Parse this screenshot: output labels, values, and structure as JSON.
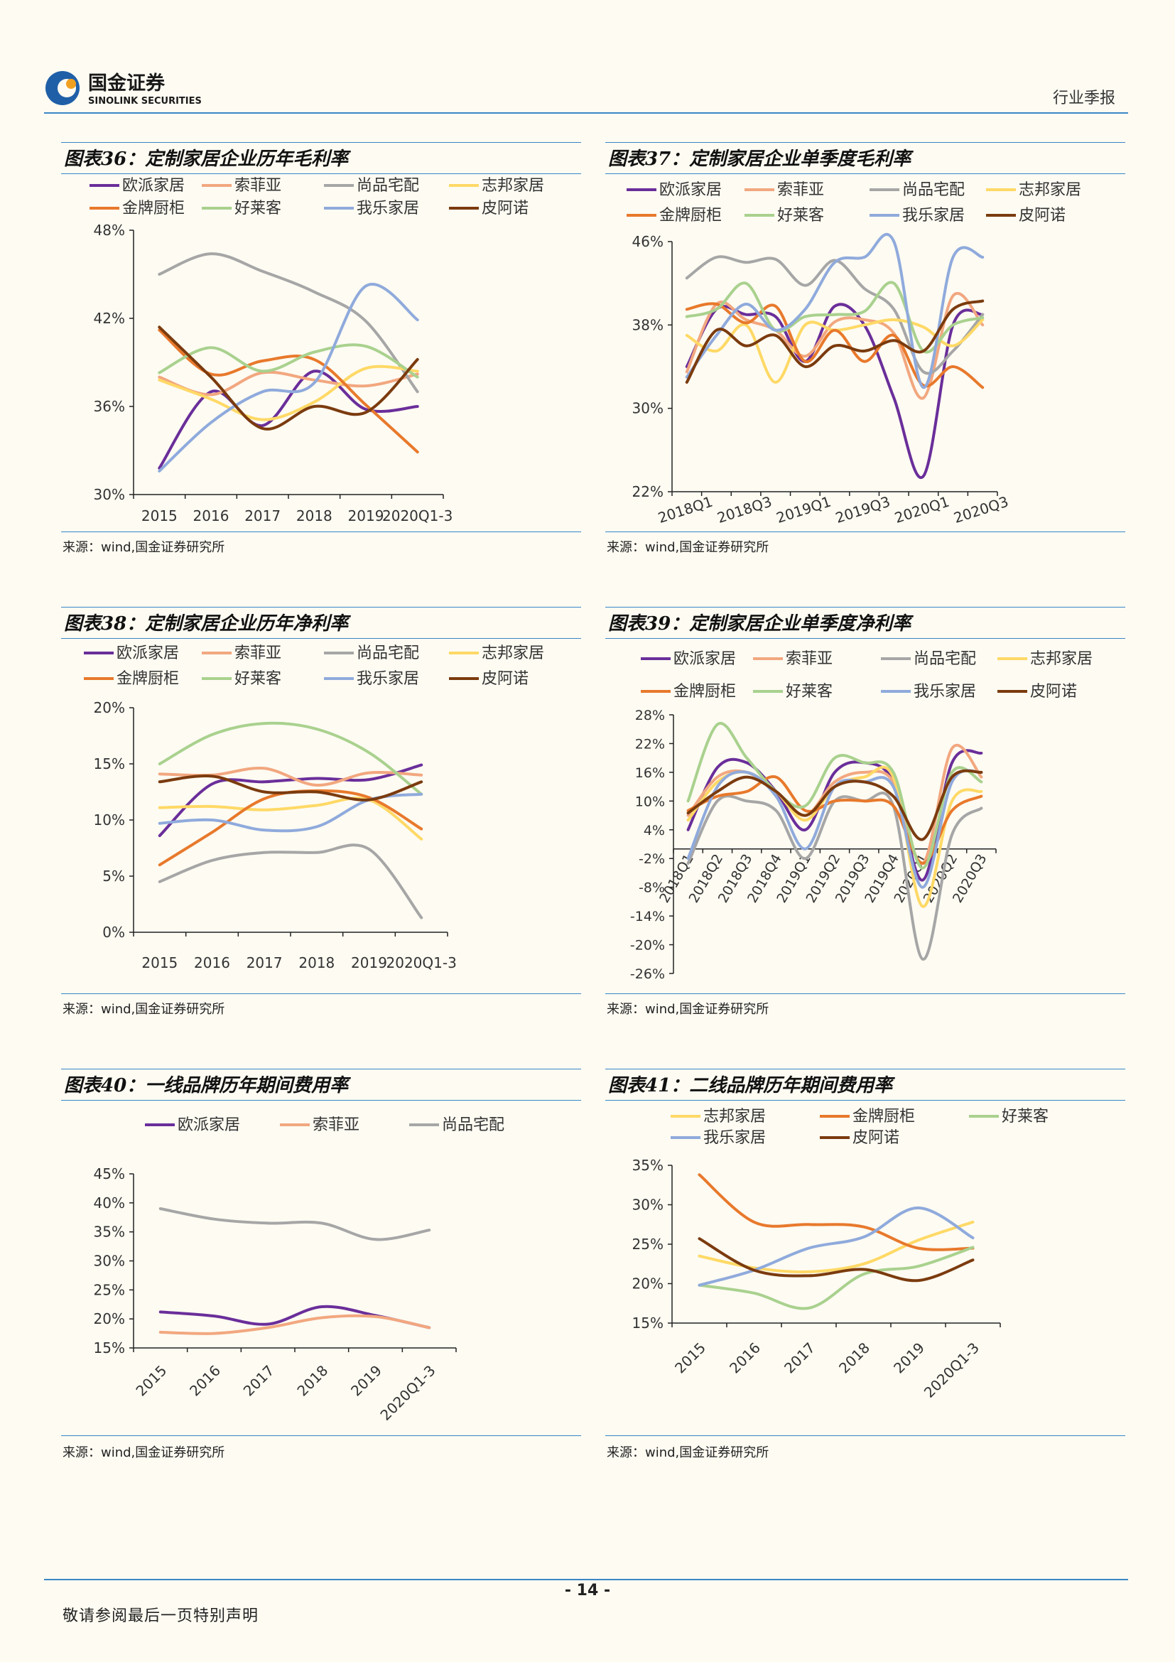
{
  "header": {
    "company_cn": "国金证券",
    "company_en": "SINOLINK SECURITIES",
    "report_type": "行业季报"
  },
  "footer": {
    "page_number": "- 14 -",
    "disclaimer": "敬请参阅最后一页特别声明"
  },
  "colors": {
    "欧派家居": "#6a2e9a",
    "索菲亚": "#f2a77f",
    "尚品宅配": "#a6a6a6",
    "志邦家居": "#ffd966",
    "金牌厨柜": "#e8792c",
    "好莱客": "#a9d18e",
    "我乐家居": "#8faadc",
    "皮阿诺": "#7b3b0e",
    "rule": "#3a86c8"
  },
  "chart_data": [
    {
      "id": "fig36",
      "title": "图表36：定制家居企业历年毛利率",
      "source": "来源：wind,国金证券研究所",
      "type": "line",
      "categories": [
        "2015",
        "2016",
        "2017",
        "2018",
        "2019",
        "2020Q1-3"
      ],
      "y_ticks": [
        "30%",
        "36%",
        "42%",
        "48%"
      ],
      "ylim": [
        30,
        48
      ],
      "legend": [
        "欧派家居",
        "索菲亚",
        "尚品宅配",
        "志邦家居",
        "金牌厨柜",
        "好莱客",
        "我乐家居",
        "皮阿诺"
      ],
      "series": [
        {
          "name": "欧派家居",
          "values": [
            31.8,
            37.0,
            34.7,
            38.4,
            35.8,
            36.0
          ]
        },
        {
          "name": "索菲亚",
          "values": [
            38.0,
            36.8,
            38.3,
            37.8,
            37.4,
            38.2
          ]
        },
        {
          "name": "尚品宅配",
          "values": [
            45.0,
            46.4,
            45.2,
            43.8,
            41.8,
            37.0
          ]
        },
        {
          "name": "志邦家居",
          "values": [
            37.8,
            36.5,
            35.1,
            36.3,
            38.6,
            38.4
          ]
        },
        {
          "name": "金牌厨柜",
          "values": [
            41.2,
            38.2,
            39.1,
            39.2,
            36.1,
            32.9
          ]
        },
        {
          "name": "好莱客",
          "values": [
            38.3,
            40.0,
            38.4,
            39.7,
            40.1,
            38.0
          ]
        },
        {
          "name": "我乐家居",
          "values": [
            31.6,
            34.9,
            37.0,
            37.6,
            44.2,
            41.9
          ]
        },
        {
          "name": "皮阿诺",
          "values": [
            41.4,
            38.0,
            34.5,
            36.0,
            35.6,
            39.2
          ]
        }
      ]
    },
    {
      "id": "fig37",
      "title": "图表37：定制家居企业单季度毛利率",
      "source": "来源：wind,国金证券研究所",
      "type": "line",
      "categories": [
        "2018Q1",
        "2018Q2",
        "2018Q3",
        "2018Q4",
        "2019Q1",
        "2019Q2",
        "2019Q3",
        "2019Q4",
        "2020Q1",
        "2020Q2",
        "2020Q3"
      ],
      "tick_labels": [
        "2018Q1",
        "2018Q3",
        "2019Q1",
        "2019Q3",
        "2020Q1",
        "2020Q3"
      ],
      "y_ticks": [
        "22%",
        "30%",
        "38%",
        "46%"
      ],
      "ylim": [
        22,
        46
      ],
      "legend": [
        "欧派家居",
        "索菲亚",
        "尚品宅配",
        "志邦家居",
        "金牌厨柜",
        "好莱客",
        "我乐家居",
        "皮阿诺"
      ],
      "series": [
        {
          "name": "欧派家居",
          "values": [
            34.0,
            39.5,
            39.0,
            38.8,
            34.5,
            39.8,
            38.0,
            31.0,
            23.5,
            38.0,
            39.0
          ]
        },
        {
          "name": "索菲亚",
          "values": [
            33.5,
            40.0,
            38.5,
            37.5,
            35.0,
            38.3,
            38.5,
            37.2,
            31.0,
            40.8,
            38.0
          ]
        },
        {
          "name": "尚品宅配",
          "values": [
            42.5,
            44.5,
            44.0,
            44.3,
            41.8,
            44.2,
            41.5,
            39.5,
            33.5,
            35.5,
            39.0
          ]
        },
        {
          "name": "志邦家居",
          "values": [
            37.0,
            35.5,
            38.0,
            32.5,
            38.0,
            37.5,
            38.0,
            38.5,
            37.8,
            36.0,
            38.5
          ]
        },
        {
          "name": "金牌厨柜",
          "values": [
            39.5,
            40.0,
            38.2,
            39.8,
            34.5,
            37.5,
            34.5,
            37.0,
            32.2,
            34.0,
            32.0
          ]
        },
        {
          "name": "好莱客",
          "values": [
            38.8,
            39.5,
            42.0,
            37.5,
            38.8,
            39.0,
            39.3,
            42.0,
            35.5,
            38.0,
            38.7
          ]
        },
        {
          "name": "我乐家居",
          "values": [
            33.0,
            37.0,
            40.0,
            37.5,
            39.5,
            44.0,
            44.5,
            46.0,
            32.0,
            44.5,
            44.5
          ]
        },
        {
          "name": "皮阿诺",
          "values": [
            32.5,
            37.5,
            36.0,
            37.0,
            34.0,
            36.0,
            35.5,
            36.5,
            35.5,
            39.5,
            40.3
          ]
        }
      ]
    },
    {
      "id": "fig38",
      "title": "图表38：定制家居企业历年净利率",
      "source": "来源：wind,国金证券研究所",
      "type": "line",
      "categories": [
        "2015",
        "2016",
        "2017",
        "2018",
        "2019",
        "2020Q1-3"
      ],
      "y_ticks": [
        "0%",
        "5%",
        "10%",
        "15%",
        "20%"
      ],
      "ylim": [
        0,
        20
      ],
      "legend": [
        "欧派家居",
        "索菲亚",
        "尚品宅配",
        "志邦家居",
        "金牌厨柜",
        "好莱客",
        "我乐家居",
        "皮阿诺"
      ],
      "series": [
        {
          "name": "欧派家居",
          "values": [
            8.6,
            13.2,
            13.4,
            13.7,
            13.6,
            14.9
          ]
        },
        {
          "name": "索菲亚",
          "values": [
            14.1,
            14.0,
            14.6,
            13.1,
            14.2,
            14.0
          ]
        },
        {
          "name": "尚品宅配",
          "values": [
            4.5,
            6.4,
            7.1,
            7.1,
            7.4,
            1.3
          ]
        },
        {
          "name": "志邦家居",
          "values": [
            11.1,
            11.2,
            10.9,
            11.3,
            11.8,
            8.3
          ]
        },
        {
          "name": "金牌厨柜",
          "values": [
            6.0,
            8.9,
            11.9,
            12.6,
            12.0,
            9.2
          ]
        },
        {
          "name": "好莱客",
          "values": [
            15.0,
            17.6,
            18.6,
            18.1,
            16.0,
            12.3
          ]
        },
        {
          "name": "我乐家居",
          "values": [
            9.7,
            10.0,
            9.1,
            9.4,
            11.8,
            12.3
          ]
        },
        {
          "name": "皮阿诺",
          "values": [
            13.4,
            13.9,
            12.5,
            12.5,
            11.8,
            13.4
          ]
        }
      ]
    },
    {
      "id": "fig39",
      "title": "图表39：定制家居企业单季度净利率",
      "source": "来源：wind,国金证券研究所",
      "type": "line",
      "categories": [
        "2018Q1",
        "2018Q2",
        "2018Q3",
        "2018Q4",
        "2019Q1",
        "2019Q2",
        "2019Q3",
        "2019Q4",
        "2020Q1",
        "2020Q2",
        "2020Q3"
      ],
      "y_ticks": [
        "-26%",
        "-20%",
        "-14%",
        "-8%",
        "-2%",
        "4%",
        "10%",
        "16%",
        "22%",
        "28%"
      ],
      "ylim": [
        -26,
        28
      ],
      "legend": [
        "欧派家居",
        "索菲亚",
        "尚品宅配",
        "志邦家居",
        "金牌厨柜",
        "好莱客",
        "我乐家居",
        "皮阿诺"
      ],
      "series": [
        {
          "name": "欧派家居",
          "values": [
            4.0,
            17.0,
            18.0,
            12.0,
            4.0,
            16.0,
            18.0,
            14.0,
            -6.5,
            18.0,
            20.0
          ]
        },
        {
          "name": "索菲亚",
          "values": [
            7.0,
            15.0,
            16.0,
            12.0,
            7.0,
            14.0,
            16.0,
            14.0,
            -3.0,
            21.0,
            15.0
          ]
        },
        {
          "name": "尚品宅配",
          "values": [
            -3.0,
            10.0,
            10.0,
            8.0,
            -2.0,
            10.0,
            10.0,
            9.0,
            -23.0,
            3.0,
            8.5
          ]
        },
        {
          "name": "志邦家居",
          "values": [
            6.0,
            14.0,
            16.0,
            12.0,
            6.0,
            13.0,
            15.0,
            15.0,
            -12.0,
            10.0,
            12.0
          ]
        },
        {
          "name": "金牌厨柜",
          "values": [
            8.0,
            11.0,
            12.0,
            15.0,
            8.0,
            10.0,
            10.0,
            9.0,
            -3.0,
            8.0,
            11.0
          ]
        },
        {
          "name": "好莱客",
          "values": [
            10.0,
            26.0,
            19.0,
            12.0,
            9.0,
            19.0,
            18.0,
            16.0,
            -4.0,
            16.0,
            14.0
          ]
        },
        {
          "name": "我乐家居",
          "values": [
            -2.0,
            13.0,
            16.0,
            11.0,
            0.0,
            13.0,
            14.0,
            13.0,
            -8.0,
            14.0,
            16.0
          ]
        },
        {
          "name": "皮阿诺",
          "values": [
            7.5,
            12.0,
            15.0,
            12.0,
            7.0,
            13.0,
            14.0,
            11.0,
            2.0,
            15.0,
            16.0
          ]
        }
      ]
    },
    {
      "id": "fig40",
      "title": "图表40：一线品牌历年期间费用率",
      "source": "来源：wind,国金证券研究所",
      "type": "line",
      "categories": [
        "2015",
        "2016",
        "2017",
        "2018",
        "2019",
        "2020Q1-3"
      ],
      "y_ticks": [
        "15%",
        "20%",
        "25%",
        "30%",
        "35%",
        "40%",
        "45%"
      ],
      "ylim": [
        15,
        45
      ],
      "legend": [
        "欧派家居",
        "索菲亚",
        "尚品宅配"
      ],
      "series": [
        {
          "name": "欧派家居",
          "values": [
            21.2,
            20.5,
            19.1,
            22.1,
            20.6,
            18.5
          ]
        },
        {
          "name": "索菲亚",
          "values": [
            17.7,
            17.5,
            18.5,
            20.2,
            20.4,
            18.5
          ]
        },
        {
          "name": "尚品宅配",
          "values": [
            39.0,
            37.2,
            36.5,
            36.5,
            33.7,
            35.3
          ]
        }
      ]
    },
    {
      "id": "fig41",
      "title": "图表41：二线品牌历年期间费用率",
      "source": "来源：wind,国金证券研究所",
      "type": "line",
      "categories": [
        "2015",
        "2016",
        "2017",
        "2018",
        "2019",
        "2020Q1-3"
      ],
      "y_ticks": [
        "15%",
        "20%",
        "25%",
        "30%",
        "35%"
      ],
      "ylim": [
        15,
        35
      ],
      "legend": [
        "志邦家居",
        "金牌厨柜",
        "好莱客",
        "我乐家居",
        "皮阿诺"
      ],
      "series": [
        {
          "name": "志邦家居",
          "values": [
            23.5,
            22.0,
            21.5,
            22.5,
            25.5,
            27.8
          ]
        },
        {
          "name": "金牌厨柜",
          "values": [
            33.8,
            27.8,
            27.5,
            27.2,
            24.5,
            24.5
          ]
        },
        {
          "name": "好莱客",
          "values": [
            19.8,
            18.8,
            16.9,
            21.2,
            22.2,
            24.6
          ]
        },
        {
          "name": "我乐家居",
          "values": [
            19.8,
            21.7,
            24.5,
            25.9,
            29.6,
            25.8
          ]
        },
        {
          "name": "皮阿诺",
          "values": [
            25.7,
            21.7,
            21.0,
            21.8,
            20.4,
            23.0
          ]
        }
      ]
    }
  ]
}
